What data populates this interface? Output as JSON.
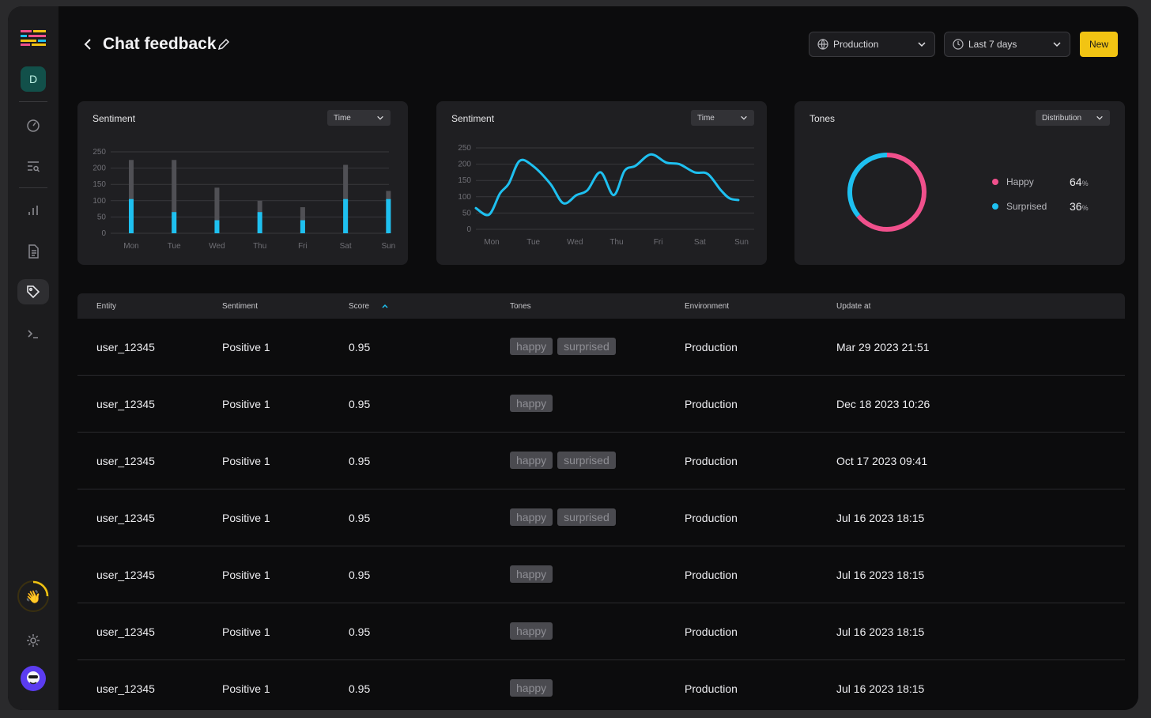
{
  "header": {
    "title": "Chat feedback",
    "env_label": "Production",
    "range_label": "Last 7 days",
    "new_label": "New"
  },
  "sidebar": {
    "avatar_letter": "D"
  },
  "cards": [
    {
      "title": "Sentiment",
      "dropdown": "Time"
    },
    {
      "title": "Sentiment",
      "dropdown": "Time"
    },
    {
      "title": "Tones",
      "dropdown": "Distribution"
    }
  ],
  "tones_legend": [
    {
      "label": "Happy",
      "value": "64",
      "unit": "%",
      "color": "#f0508c"
    },
    {
      "label": "Surprised",
      "value": "36",
      "unit": "%",
      "color": "#1ec0f0"
    }
  ],
  "chart_data": [
    {
      "type": "bar",
      "title": "Sentiment",
      "categories": [
        "Mon",
        "Tue",
        "Wed",
        "Thu",
        "Fri",
        "Sat",
        "Sun"
      ],
      "yticks": [
        0,
        50,
        100,
        150,
        200,
        250
      ],
      "ylim": [
        0,
        250
      ],
      "series": [
        {
          "values": [
            105,
            65,
            40,
            65,
            40,
            105,
            105
          ],
          "color": "#1ec0f0"
        },
        {
          "values": [
            225,
            225,
            140,
            100,
            80,
            210,
            130
          ],
          "color": "#505055"
        }
      ],
      "grid": true
    },
    {
      "type": "line",
      "title": "Sentiment",
      "categories": [
        "Mon",
        "Tue",
        "Wed",
        "Thu",
        "Fri",
        "Sat",
        "Sun"
      ],
      "yticks": [
        0,
        50,
        100,
        150,
        200,
        250
      ],
      "ylim": [
        0,
        250
      ],
      "x": [
        0,
        0.3,
        0.55,
        0.75,
        1.0,
        1.3,
        1.7,
        2.0,
        2.3,
        2.55,
        2.85,
        3.15,
        3.4,
        3.65,
        4.0,
        4.35,
        4.65,
        5.0,
        5.3,
        5.6,
        5.8,
        6.0
      ],
      "values": [
        65,
        45,
        110,
        140,
        210,
        195,
        140,
        80,
        105,
        120,
        175,
        105,
        180,
        195,
        230,
        205,
        200,
        175,
        170,
        120,
        95,
        90
      ],
      "color": "#1ec0f0",
      "grid": true
    },
    {
      "type": "pie",
      "title": "Tones",
      "labels": [
        "Happy",
        "Surprised"
      ],
      "values": [
        64,
        36
      ],
      "colors": [
        "#f0508c",
        "#1ec0f0"
      ]
    }
  ],
  "table": {
    "columns": [
      "Entity",
      "Sentiment",
      "Score",
      "Tones",
      "Environment",
      "Update at"
    ],
    "rows": [
      {
        "entity": "user_12345",
        "sentiment": "Positive 1",
        "score": "0.95",
        "tones": [
          "happy",
          "surprised"
        ],
        "env": "Production",
        "updated": "Mar 29 2023 21:51"
      },
      {
        "entity": "user_12345",
        "sentiment": "Positive 1",
        "score": "0.95",
        "tones": [
          "happy"
        ],
        "env": "Production",
        "updated": "Dec 18 2023 10:26"
      },
      {
        "entity": "user_12345",
        "sentiment": "Positive 1",
        "score": "0.95",
        "tones": [
          "happy",
          "surprised"
        ],
        "env": "Production",
        "updated": "Oct 17 2023 09:41"
      },
      {
        "entity": "user_12345",
        "sentiment": "Positive 1",
        "score": "0.95",
        "tones": [
          "happy",
          "surprised"
        ],
        "env": "Production",
        "updated": "Jul 16 2023 18:15"
      },
      {
        "entity": "user_12345",
        "sentiment": "Positive 1",
        "score": "0.95",
        "tones": [
          "happy"
        ],
        "env": "Production",
        "updated": "Jul 16 2023 18:15"
      },
      {
        "entity": "user_12345",
        "sentiment": "Positive 1",
        "score": "0.95",
        "tones": [
          "happy"
        ],
        "env": "Production",
        "updated": "Jul 16 2023 18:15"
      },
      {
        "entity": "user_12345",
        "sentiment": "Positive 1",
        "score": "0.95",
        "tones": [
          "happy"
        ],
        "env": "Production",
        "updated": "Jul 16 2023 18:15"
      }
    ]
  }
}
